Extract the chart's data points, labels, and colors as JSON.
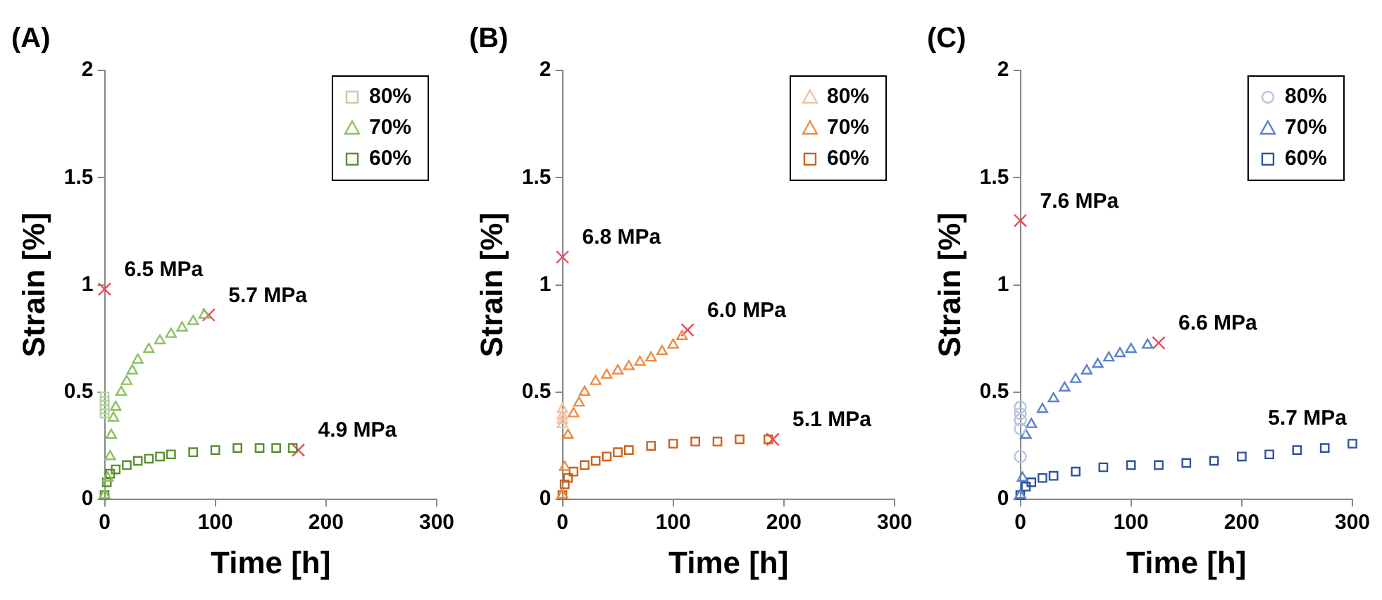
{
  "chart_data": [
    {
      "type": "scatter",
      "title": "(A)",
      "xlabel": "Time [h]",
      "ylabel": "Strain [%]",
      "xlim": [
        0,
        300
      ],
      "xticks": [
        0,
        100,
        200,
        300
      ],
      "ylim": [
        0,
        2
      ],
      "yticks": [
        0,
        0.5,
        1,
        1.5,
        2
      ],
      "grid": false,
      "legend": "top right",
      "series": [
        {
          "name": "80%",
          "color": "#b5d6a0",
          "marker": "square",
          "x": [
            0,
            0,
            0,
            0,
            0
          ],
          "values": [
            0.4,
            0.42,
            0.44,
            0.46,
            0.48
          ]
        },
        {
          "name": "70%",
          "color": "#8cc063",
          "marker": "triangle",
          "x": [
            0,
            3,
            5,
            6,
            8,
            10,
            15,
            20,
            25,
            30,
            40,
            50,
            60,
            70,
            80,
            90
          ],
          "values": [
            0.02,
            0.1,
            0.2,
            0.3,
            0.38,
            0.43,
            0.5,
            0.55,
            0.6,
            0.65,
            0.7,
            0.74,
            0.77,
            0.8,
            0.83,
            0.86
          ]
        },
        {
          "name": "60%",
          "color": "#5a8f2e",
          "marker": "square",
          "x": [
            0,
            2,
            5,
            10,
            20,
            30,
            40,
            50,
            60,
            80,
            100,
            120,
            140,
            155,
            170
          ],
          "values": [
            0.02,
            0.08,
            0.12,
            0.14,
            0.16,
            0.18,
            0.19,
            0.2,
            0.21,
            0.22,
            0.23,
            0.24,
            0.24,
            0.24,
            0.24
          ]
        },
        {
          "color": "#e84a5f",
          "marker": "cross",
          "x": [
            0,
            94,
            175
          ],
          "values": [
            0.98,
            0.86,
            0.23
          ]
        }
      ],
      "annotations": [
        {
          "text": "6.5 MPa",
          "x": 0,
          "y": 0.98
        },
        {
          "text": "5.7 MPa",
          "x": 94,
          "y": 0.86
        },
        {
          "text": "4.9 MPa",
          "x": 175,
          "y": 0.23
        }
      ]
    },
    {
      "type": "scatter",
      "title": "(B)",
      "xlabel": "Time [h]",
      "ylabel": "Strain [%]",
      "xlim": [
        0,
        300
      ],
      "xticks": [
        0,
        100,
        200,
        300
      ],
      "ylim": [
        0,
        2
      ],
      "yticks": [
        0,
        0.5,
        1,
        1.5,
        2
      ],
      "grid": false,
      "legend": "top right",
      "series": [
        {
          "name": "80%",
          "color": "#f4c0a0",
          "marker": "triangle",
          "x": [
            0,
            0,
            0,
            0
          ],
          "values": [
            0.35,
            0.37,
            0.39,
            0.42
          ]
        },
        {
          "name": "70%",
          "color": "#f08a40",
          "marker": "triangle",
          "x": [
            0,
            2,
            5,
            10,
            15,
            20,
            30,
            40,
            50,
            60,
            70,
            80,
            90,
            100,
            108
          ],
          "values": [
            0.02,
            0.15,
            0.3,
            0.4,
            0.45,
            0.5,
            0.55,
            0.58,
            0.6,
            0.62,
            0.64,
            0.66,
            0.69,
            0.72,
            0.76
          ]
        },
        {
          "name": "60%",
          "color": "#c8641e",
          "marker": "square",
          "x": [
            0,
            2,
            5,
            10,
            20,
            30,
            40,
            50,
            60,
            80,
            100,
            120,
            140,
            160,
            186
          ],
          "values": [
            0.02,
            0.07,
            0.1,
            0.13,
            0.16,
            0.18,
            0.2,
            0.22,
            0.23,
            0.25,
            0.26,
            0.27,
            0.27,
            0.28,
            0.28
          ]
        },
        {
          "color": "#e84a5f",
          "marker": "cross",
          "x": [
            0,
            113,
            190
          ],
          "values": [
            1.13,
            0.79,
            0.28
          ]
        }
      ],
      "annotations": [
        {
          "text": "6.8 MPa",
          "x": 0,
          "y": 1.13
        },
        {
          "text": "6.0 MPa",
          "x": 113,
          "y": 0.79
        },
        {
          "text": "5.1 MPa",
          "x": 190,
          "y": 0.28
        }
      ]
    },
    {
      "type": "scatter",
      "title": "(C)",
      "xlabel": "Time [h]",
      "ylabel": "Strain [%]",
      "xlim": [
        0,
        300
      ],
      "xticks": [
        0,
        100,
        200,
        300
      ],
      "ylim": [
        0,
        2
      ],
      "yticks": [
        0,
        0.5,
        1,
        1.5,
        2
      ],
      "grid": false,
      "legend": "top right",
      "series": [
        {
          "name": "80%",
          "color": "#b4c4e4",
          "marker": "circle",
          "x": [
            0,
            0,
            0,
            0,
            0
          ],
          "values": [
            0.2,
            0.33,
            0.37,
            0.4,
            0.43
          ]
        },
        {
          "name": "70%",
          "color": "#5a82cc",
          "marker": "triangle",
          "x": [
            0,
            2,
            5,
            10,
            20,
            30,
            40,
            50,
            60,
            70,
            80,
            90,
            100,
            115
          ],
          "values": [
            0.02,
            0.1,
            0.3,
            0.35,
            0.42,
            0.47,
            0.52,
            0.56,
            0.6,
            0.63,
            0.66,
            0.68,
            0.7,
            0.72
          ]
        },
        {
          "name": "60%",
          "color": "#2e54a0",
          "marker": "square",
          "x": [
            0,
            5,
            10,
            20,
            30,
            50,
            75,
            100,
            125,
            150,
            175,
            200,
            225,
            250,
            275,
            300
          ],
          "values": [
            0.02,
            0.06,
            0.08,
            0.1,
            0.11,
            0.13,
            0.15,
            0.16,
            0.16,
            0.17,
            0.18,
            0.2,
            0.21,
            0.23,
            0.24,
            0.26
          ]
        },
        {
          "color": "#e84a5f",
          "marker": "cross",
          "x": [
            0,
            125
          ],
          "values": [
            1.3,
            0.73
          ]
        }
      ],
      "annotations": [
        {
          "text": "7.6 MPa",
          "x": 0,
          "y": 1.3
        },
        {
          "text": "6.6 MPa",
          "x": 125,
          "y": 0.73
        },
        {
          "text": "5.7 MPa",
          "x": 300,
          "y": 0.26
        }
      ]
    }
  ]
}
